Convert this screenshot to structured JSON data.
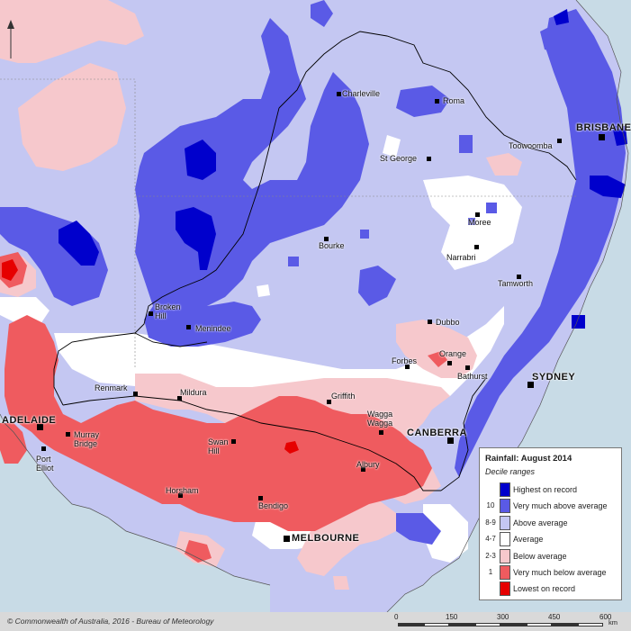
{
  "map": {
    "title": "Rainfall: August 2014",
    "subtitle": "Decile ranges",
    "credit": "© Commonwealth of Australia, 2016 - Bureau of Meteorology",
    "colors": {
      "sea": "#c8dbe6",
      "highest": "#0000cc",
      "very_much_above": "#5a5ae6",
      "above": "#c4c7f2",
      "average": "#ffffff",
      "below": "#f6c8cc",
      "very_much_below": "#ef5b5f",
      "lowest": "#e60000",
      "border": "#000000",
      "graticule": "#888888"
    }
  },
  "legend": {
    "rows": [
      {
        "code": "",
        "label": "Highest on record",
        "color": "#0000cc"
      },
      {
        "code": "10",
        "label": "Very much above average",
        "color": "#5a5ae6"
      },
      {
        "code": "8-9",
        "label": "Above average",
        "color": "#c4c7f2"
      },
      {
        "code": "4-7",
        "label": "Average",
        "color": "#ffffff"
      },
      {
        "code": "2-3",
        "label": "Below average",
        "color": "#f6c8cc"
      },
      {
        "code": "1",
        "label": "Very much below average",
        "color": "#ef5b5f"
      },
      {
        "code": "",
        "label": "Lowest on record",
        "color": "#e60000"
      }
    ]
  },
  "scale": {
    "ticks": [
      "0",
      "150",
      "300",
      "450",
      "600"
    ],
    "unit": "km"
  },
  "places": [
    {
      "name": "Charleville",
      "capital": false
    },
    {
      "name": "Roma",
      "capital": false
    },
    {
      "name": "BRISBANE",
      "capital": true
    },
    {
      "name": "Toowoomba",
      "capital": false
    },
    {
      "name": "St George",
      "capital": false
    },
    {
      "name": "Moree",
      "capital": false
    },
    {
      "name": "Bourke",
      "capital": false
    },
    {
      "name": "Narrabri",
      "capital": false
    },
    {
      "name": "Tamworth",
      "capital": false
    },
    {
      "name": "Broken\nHill",
      "capital": false
    },
    {
      "name": "Menindee",
      "capital": false
    },
    {
      "name": "Dubbo",
      "capital": false
    },
    {
      "name": "Orange",
      "capital": false
    },
    {
      "name": "Forbes",
      "capital": false
    },
    {
      "name": "Bathurst",
      "capital": false
    },
    {
      "name": "SYDNEY",
      "capital": true
    },
    {
      "name": "Renmark",
      "capital": false
    },
    {
      "name": "Mildura",
      "capital": false
    },
    {
      "name": "Griffith",
      "capital": false
    },
    {
      "name": "Wagga\nWagga",
      "capital": false
    },
    {
      "name": "CANBERRA",
      "capital": true
    },
    {
      "name": "ADELAIDE",
      "capital": true
    },
    {
      "name": "Murray\nBridge",
      "capital": false
    },
    {
      "name": "Port\nElliot",
      "capital": false
    },
    {
      "name": "Swan\nHill",
      "capital": false
    },
    {
      "name": "Albury",
      "capital": false
    },
    {
      "name": "Horsham",
      "capital": false
    },
    {
      "name": "Bendigo",
      "capital": false
    },
    {
      "name": "MELBOURNE",
      "capital": true
    }
  ]
}
